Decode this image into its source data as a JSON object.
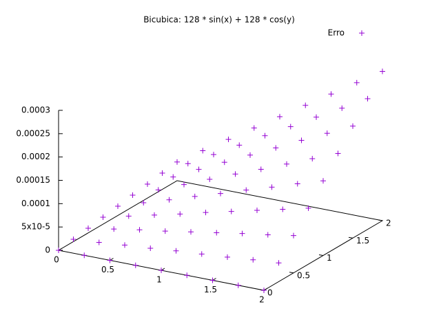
{
  "chart_data": {
    "type": "scatter3d",
    "title": "Bicubica: 128 * sin(x) + 128 * cos(y)",
    "series_name": "Erro",
    "color": "#9400d3",
    "legend": "top-right",
    "grid": false,
    "x": [
      0,
      0.25,
      0.5,
      0.75,
      1,
      1.25,
      1.5,
      1.75,
      2
    ],
    "y": [
      0,
      0.25,
      0.5,
      0.75,
      1,
      1.25,
      1.5,
      1.75,
      2
    ],
    "z": [
      [
        0,
        5e-06,
        1e-05,
        1.5e-05,
        2e-05,
        2.5e-05,
        3e-05,
        3.5e-05,
        4e-05
      ],
      [
        0,
        9e-06,
        1.9e-05,
        2.8e-05,
        3.8e-05,
        4.7e-05,
        5.6e-05,
        6.6e-05,
        7.5e-05
      ],
      [
        0,
        1.4e-05,
        2.8e-05,
        4.1e-05,
        5.5e-05,
        6.9e-05,
        8.3e-05,
        9.6e-05,
        0.00011
      ],
      [
        0,
        1.8e-05,
        3.6e-05,
        5.4e-05,
        7.3e-05,
        9.1e-05,
        0.000109,
        0.000127,
        0.000145
      ],
      [
        0,
        2.3e-05,
        4.5e-05,
        6.8e-05,
        9e-05,
        0.000113,
        0.000135,
        0.000158,
        0.00018
      ],
      [
        0,
        2.7e-05,
        5.4e-05,
        8.1e-05,
        0.000108,
        0.000134,
        0.000161,
        0.000188,
        0.000215
      ],
      [
        0,
        3.1e-05,
        6.3e-05,
        9.4e-05,
        0.000125,
        0.000156,
        0.000188,
        0.000219,
        0.00025
      ],
      [
        0,
        3.6e-05,
        7.1e-05,
        0.000107,
        0.000143,
        0.000178,
        0.000214,
        0.000249,
        0.000285
      ],
      [
        0,
        4e-05,
        8e-05,
        0.00012,
        0.00016,
        0.0002,
        0.00024,
        0.00028,
        0.00032
      ]
    ],
    "xlim": [
      0,
      2
    ],
    "xticks": [
      0,
      0.5,
      1,
      1.5,
      2
    ],
    "ylim": [
      0,
      2
    ],
    "yticks": [
      0,
      0.5,
      1,
      1.5,
      2
    ],
    "zlim": [
      0,
      0.0003
    ],
    "zticks": [
      0,
      {
        "value": 5e-05,
        "label": "5x10-5"
      },
      0.0001,
      0.00015,
      0.0002,
      0.00025,
      0.0003
    ]
  }
}
